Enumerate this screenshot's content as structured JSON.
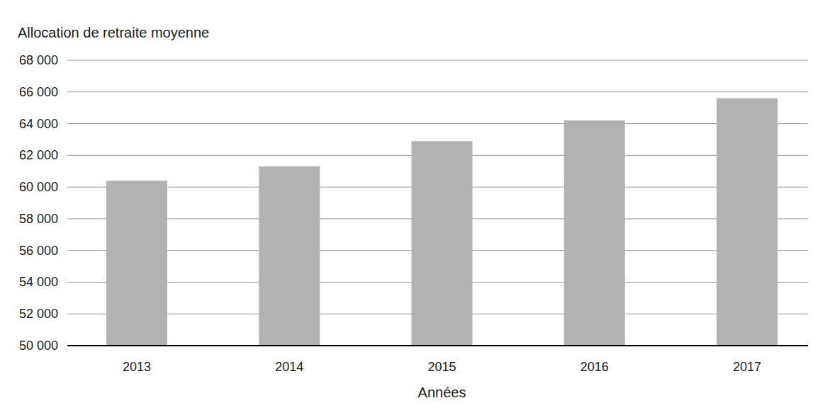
{
  "chart_data": {
    "type": "bar",
    "y_label": "Allocation de retraite moyenne",
    "x_label": "Années",
    "categories": [
      "2013",
      "2014",
      "2015",
      "2016",
      "2017"
    ],
    "values": [
      60400,
      61300,
      62900,
      64200,
      65600
    ],
    "color": "#b2b2b2",
    "ylim": [
      50000,
      68000
    ],
    "yticks": [
      {
        "value": 50000,
        "label": "50 000"
      },
      {
        "value": 52000,
        "label": "52 000"
      },
      {
        "value": 54000,
        "label": "54 000"
      },
      {
        "value": 56000,
        "label": "56 000"
      },
      {
        "value": 58000,
        "label": "58 000"
      },
      {
        "value": 60000,
        "label": "60 000"
      },
      {
        "value": 62000,
        "label": "62 000"
      },
      {
        "value": 64000,
        "label": "64 000"
      },
      {
        "value": 66000,
        "label": "66 000"
      },
      {
        "value": 68000,
        "label": "68 000"
      }
    ],
    "grid": true
  }
}
